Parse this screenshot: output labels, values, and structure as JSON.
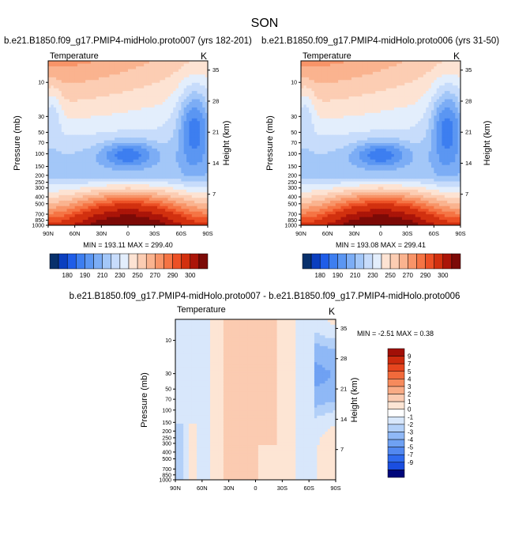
{
  "figure_title": "SON",
  "colors": {
    "blue_scale": [
      "#08306b",
      "#0b3fbf",
      "#1f5de8",
      "#3d7ef0",
      "#5b96f2",
      "#7cadf5",
      "#a3c7f8",
      "#c7dcfb",
      "#e3eefc"
    ],
    "warm_scale": [
      "#fde3d3",
      "#fccdb3",
      "#fab38f",
      "#f89468",
      "#f57444",
      "#ec5025",
      "#d2300f",
      "#ab1509",
      "#7c0a07"
    ],
    "diff_blue": [
      "#00067a",
      "#0a2fb3",
      "#1b4ee0",
      "#2f6aee",
      "#5288f0",
      "#6fa1f3",
      "#8fb8f6",
      "#b3d0f8",
      "#d8e7fb"
    ],
    "diff_warm": [
      "#fde5d4",
      "#fbcbb1",
      "#f9ab85",
      "#f68a5c",
      "#f16a3b",
      "#e6451e",
      "#cc2a0e",
      "#a10f07"
    ],
    "zero_band": "#ffffff"
  },
  "chart_data": [
    {
      "type": "heatmap",
      "title": "b.e21.B1850.f09_g17.PMIP4-midHolo.proto007 (yrs 182-201)",
      "left_string": "Temperature",
      "right_string": "K",
      "ylabel": "Pressure (mb)",
      "ylabel_right": "Height (km)",
      "x_ticks": [
        "90N",
        "60N",
        "30N",
        "0",
        "30S",
        "60S",
        "90S"
      ],
      "y_ticks": [
        "10",
        "30",
        "50",
        "70",
        "100",
        "150",
        "200",
        "250",
        "300",
        "400",
        "500",
        "700",
        "850",
        "1000"
      ],
      "y_ticks_right": [
        "35",
        "28",
        "21",
        "14",
        "7"
      ],
      "stats": "MIN = 193.11   MAX = 299.40",
      "colorbar_labels": [
        "180",
        "190",
        "210",
        "230",
        "250",
        "270",
        "290",
        "300"
      ],
      "min": 193.11,
      "max": 299.4
    },
    {
      "type": "heatmap",
      "title": "b.e21.B1850.f09_g17.PMIP4-midHolo.proto006 (yrs 31-50)",
      "left_string": "Temperature",
      "right_string": "K",
      "ylabel": "Pressure (mb)",
      "ylabel_right": "Height (km)",
      "x_ticks": [
        "90N",
        "60N",
        "30N",
        "0",
        "30S",
        "60S",
        "90S"
      ],
      "y_ticks": [
        "10",
        "30",
        "50",
        "70",
        "100",
        "150",
        "200",
        "250",
        "300",
        "400",
        "500",
        "700",
        "850",
        "1000"
      ],
      "y_ticks_right": [
        "35",
        "28",
        "21",
        "14",
        "7"
      ],
      "stats": "MIN = 193.08   MAX = 299.41",
      "colorbar_labels": [
        "180",
        "190",
        "210",
        "230",
        "250",
        "270",
        "290",
        "300"
      ],
      "min": 193.08,
      "max": 299.41
    },
    {
      "type": "heatmap",
      "title": "b.e21.B1850.f09_g17.PMIP4-midHolo.proto007 - b.e21.B1850.f09_g17.PMIP4-midHolo.proto006",
      "left_string": "Temperature",
      "right_string": "K",
      "ylabel": "Pressure (mb)",
      "ylabel_right": "Height (km)",
      "x_ticks": [
        "90N",
        "60N",
        "30N",
        "0",
        "30S",
        "60S",
        "90S"
      ],
      "y_ticks": [
        "10",
        "30",
        "50",
        "70",
        "100",
        "150",
        "200",
        "250",
        "300",
        "400",
        "500",
        "700",
        "850",
        "1000"
      ],
      "y_ticks_right": [
        "35",
        "28",
        "21",
        "14",
        "7"
      ],
      "stats": "MIN =  -2.51   MAX =   0.38",
      "colorbar_labels": [
        "9",
        "7",
        "5",
        "4",
        "3",
        "2",
        "1",
        "0",
        "-1",
        "-2",
        "-3",
        "-4",
        "-5",
        "-7",
        "-9"
      ],
      "min": -2.51,
      "max": 0.38
    }
  ]
}
